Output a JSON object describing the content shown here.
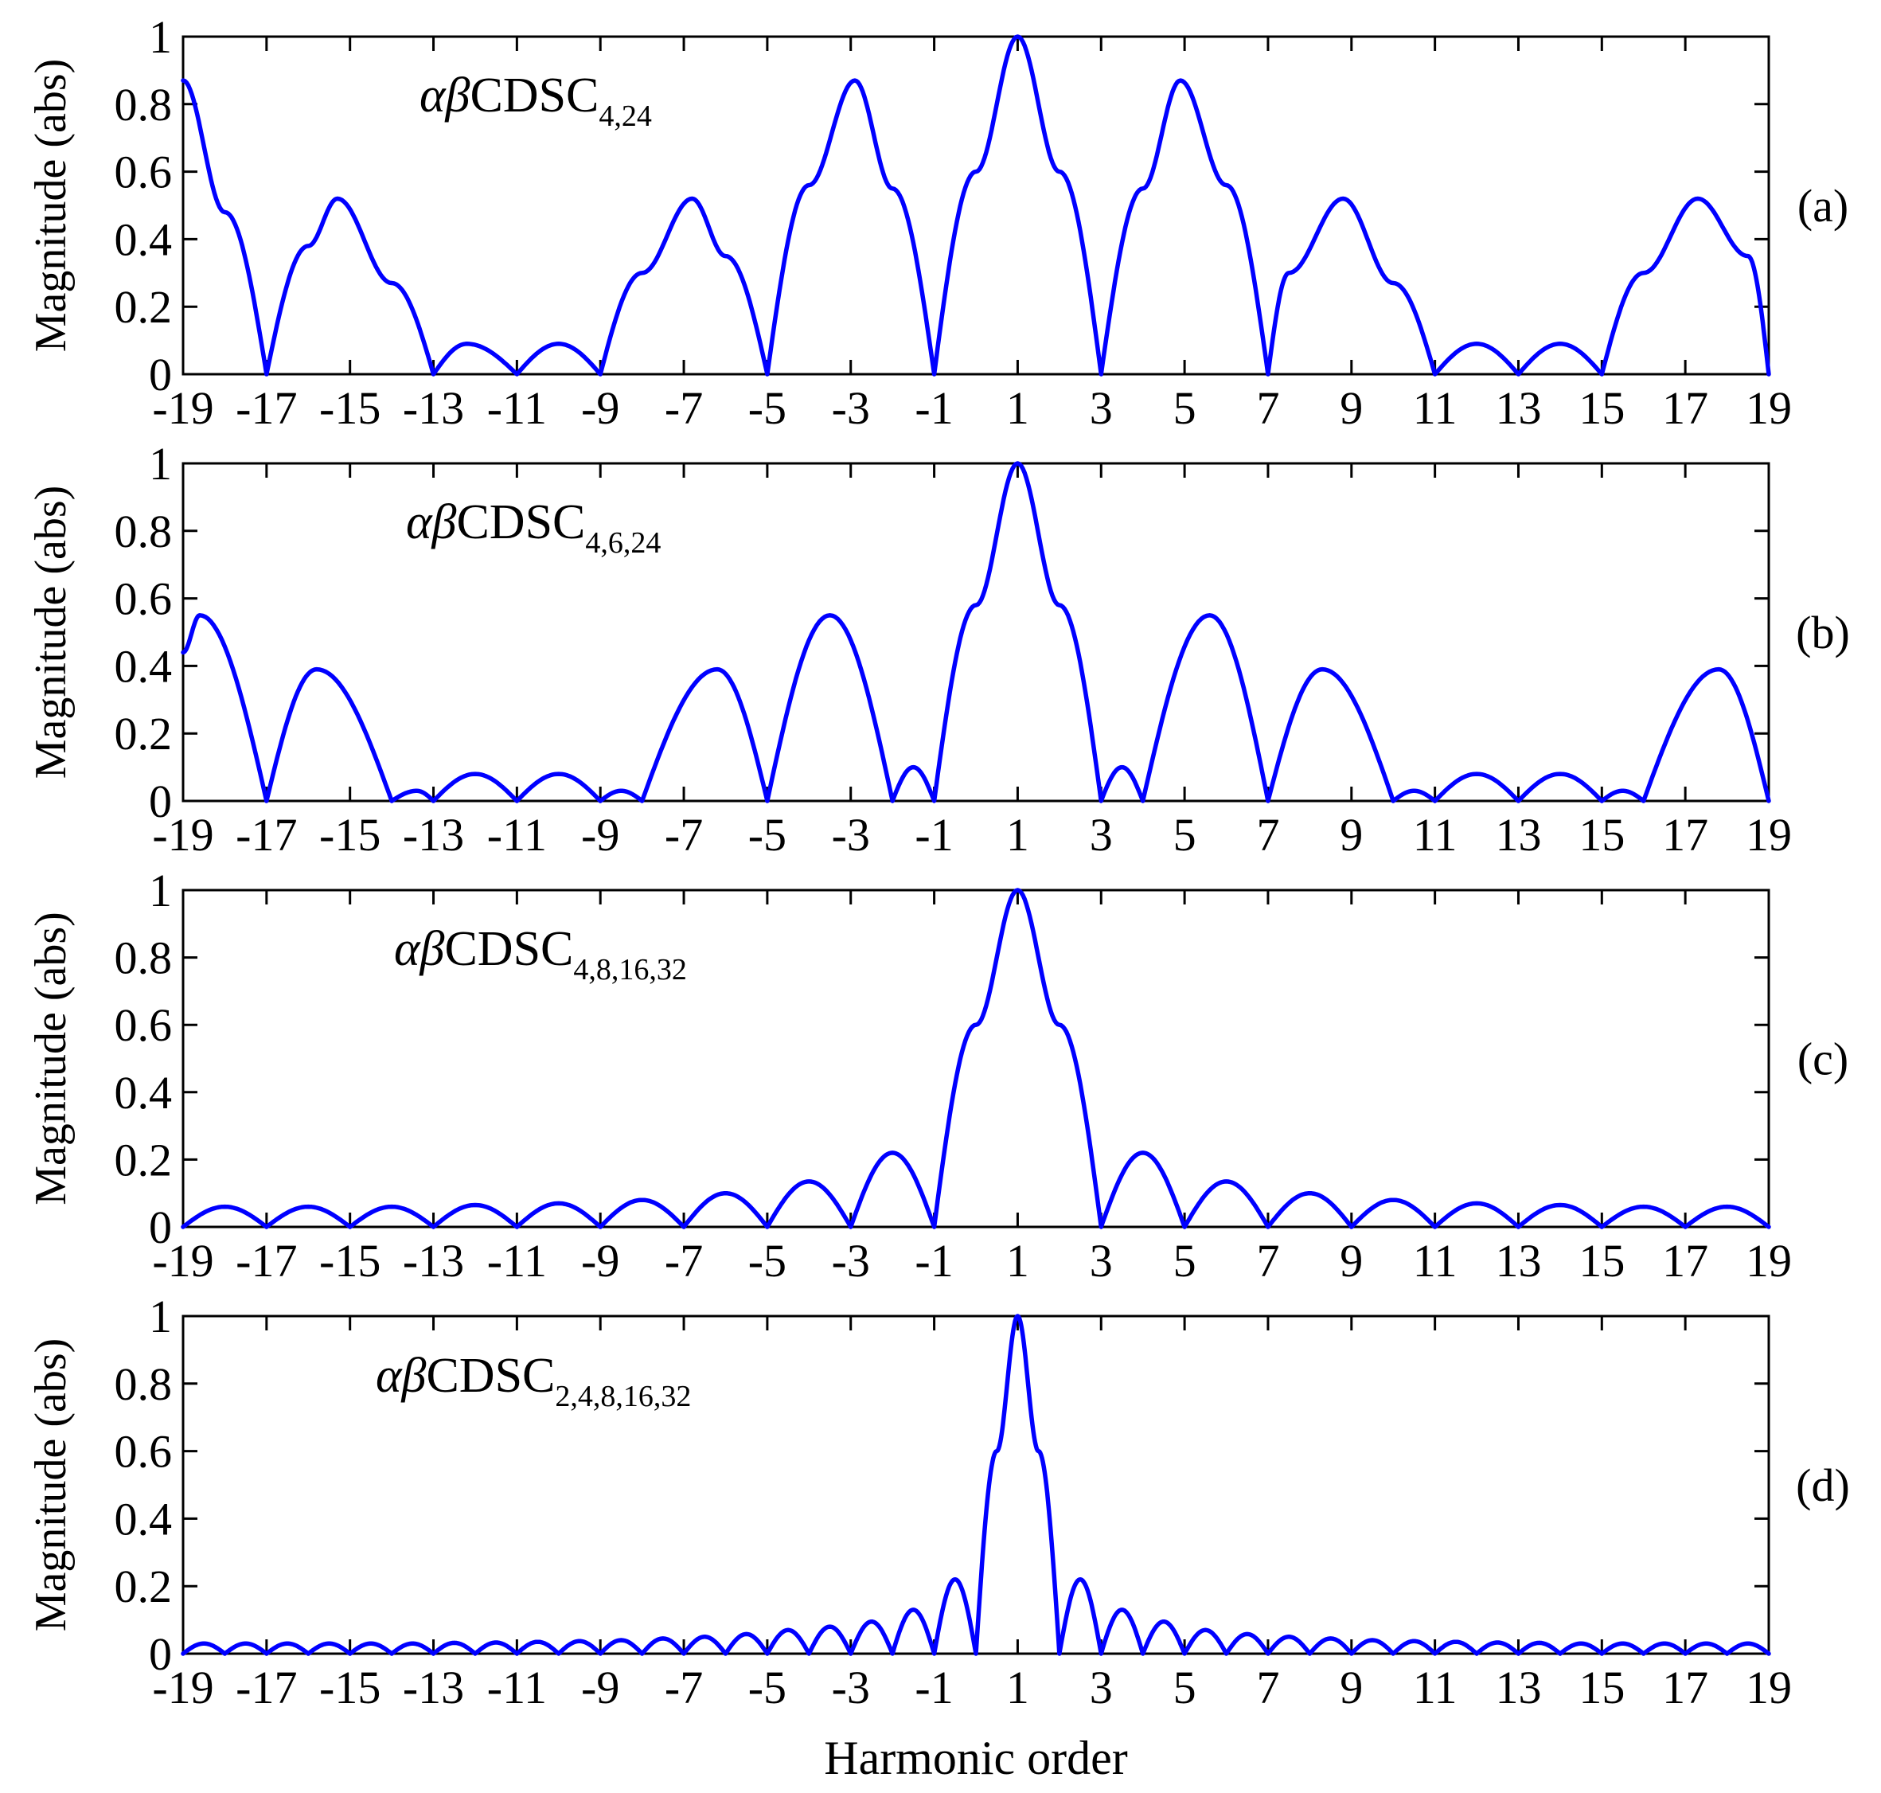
{
  "chart_data": [
    {
      "type": "line",
      "panel_label": "(a)",
      "annotation": {
        "greek": "αβ",
        "text": "CDSC",
        "subscript": "4,24"
      },
      "ylabel": "Magnitude (abs)",
      "xlabel": "",
      "xlim": [
        -19,
        19
      ],
      "ylim": [
        0,
        1
      ],
      "xticks": [
        "-19",
        "-17",
        "-15",
        "-13",
        "-11",
        "-9",
        "-7",
        "-5",
        "-3",
        "-1",
        "1",
        "3",
        "5",
        "7",
        "9",
        "11",
        "13",
        "15",
        "17",
        "19"
      ],
      "yticks": [
        "0",
        "0.2",
        "0.4",
        "0.6",
        "0.8",
        "1"
      ],
      "grid": false,
      "series": [
        {
          "color": "#0000ff",
          "x": [
            -19,
            -18,
            -17,
            -16,
            -15.3,
            -14,
            -13,
            -12.2,
            -11,
            -10,
            -9,
            -8,
            -6.8,
            -6,
            -5,
            -4,
            -2.9,
            -2,
            -1,
            0,
            1,
            2,
            3,
            4,
            4.9,
            6,
            7,
            7.5,
            8.8,
            10,
            11,
            12,
            13,
            14,
            15,
            16,
            17.3,
            18.5,
            19
          ],
          "y": [
            0.87,
            0.48,
            0,
            0.38,
            0.52,
            0.27,
            0,
            0.09,
            0,
            0.09,
            0,
            0.3,
            0.52,
            0.35,
            0,
            0.56,
            0.87,
            0.55,
            0,
            0.6,
            1,
            0.6,
            0,
            0.55,
            0.87,
            0.56,
            0,
            0.3,
            0.52,
            0.27,
            0,
            0.09,
            0,
            0.09,
            0,
            0.3,
            0.52,
            0.35,
            0
          ]
        }
      ]
    },
    {
      "type": "line",
      "panel_label": "(b)",
      "annotation": {
        "greek": "αβ",
        "text": "CDSC",
        "subscript": "4,6,24"
      },
      "ylabel": "Magnitude (abs)",
      "xlabel": "",
      "xlim": [
        -19,
        19
      ],
      "ylim": [
        0,
        1
      ],
      "xticks": [
        "-19",
        "-17",
        "-15",
        "-13",
        "-11",
        "-9",
        "-7",
        "-5",
        "-3",
        "-1",
        "1",
        "3",
        "5",
        "7",
        "9",
        "11",
        "13",
        "15",
        "17",
        "19"
      ],
      "yticks": [
        "0",
        "0.2",
        "0.4",
        "0.6",
        "0.8",
        "1"
      ],
      "grid": false,
      "series": [
        {
          "color": "#0000ff",
          "x": [
            -19,
            -18.6,
            -17,
            -15.8,
            -14,
            -13.4,
            -13,
            -12,
            -11,
            -10,
            -9,
            -8.5,
            -8,
            -6.2,
            -5,
            -3.5,
            -2,
            -1.5,
            -1,
            0,
            1,
            2,
            3,
            3.5,
            4,
            5.6,
            7,
            8.3,
            10,
            10.5,
            11,
            12,
            13,
            14,
            15,
            15.5,
            16,
            17.8,
            19
          ],
          "y": [
            0.44,
            0.55,
            0,
            0.39,
            0,
            0.03,
            0,
            0.08,
            0,
            0.08,
            0,
            0.03,
            0,
            0.39,
            0,
            0.55,
            0,
            0.1,
            0,
            0.58,
            1,
            0.58,
            0,
            0.1,
            0,
            0.55,
            0,
            0.39,
            0,
            0.03,
            0,
            0.08,
            0,
            0.08,
            0,
            0.03,
            0,
            0.39,
            0
          ]
        }
      ]
    },
    {
      "type": "line",
      "panel_label": "(c)",
      "annotation": {
        "greek": "αβ",
        "text": "CDSC",
        "subscript": "4,8,16,32"
      },
      "ylabel": "Magnitude (abs)",
      "xlabel": "",
      "xlim": [
        -19,
        19
      ],
      "ylim": [
        0,
        1
      ],
      "xticks": [
        "-19",
        "-17",
        "-15",
        "-13",
        "-11",
        "-9",
        "-7",
        "-5",
        "-3",
        "-1",
        "1",
        "3",
        "5",
        "7",
        "9",
        "11",
        "13",
        "15",
        "17",
        "19"
      ],
      "yticks": [
        "0",
        "0.2",
        "0.4",
        "0.6",
        "0.8",
        "1"
      ],
      "grid": false,
      "series": [
        {
          "color": "#0000ff",
          "x": [
            -19,
            -18,
            -17,
            -16,
            -15,
            -14,
            -13,
            -12,
            -11,
            -10,
            -9,
            -8,
            -7,
            -6,
            -5,
            -4,
            -3,
            -2,
            -1,
            0,
            1,
            2,
            3,
            4,
            5,
            6,
            7,
            8,
            9,
            10,
            11,
            12,
            13,
            14,
            15,
            16,
            17,
            18,
            19
          ],
          "y": [
            0,
            0.06,
            0,
            0.06,
            0,
            0.06,
            0,
            0.065,
            0,
            0.07,
            0,
            0.08,
            0,
            0.1,
            0,
            0.135,
            0,
            0.22,
            0,
            0.6,
            1,
            0.6,
            0,
            0.22,
            0,
            0.135,
            0,
            0.1,
            0,
            0.08,
            0,
            0.07,
            0,
            0.065,
            0,
            0.06,
            0,
            0.06,
            0
          ]
        }
      ]
    },
    {
      "type": "line",
      "panel_label": "(d)",
      "annotation": {
        "greek": "αβ",
        "text": "CDSC",
        "subscript": "2,4,8,16,32"
      },
      "ylabel": "Magnitude (abs)",
      "xlabel": "Harmonic order",
      "xlim": [
        -19,
        19
      ],
      "ylim": [
        0,
        1
      ],
      "xticks": [
        "-19",
        "-17",
        "-15",
        "-13",
        "-11",
        "-9",
        "-7",
        "-5",
        "-3",
        "-1",
        "1",
        "3",
        "5",
        "7",
        "9",
        "11",
        "13",
        "15",
        "17",
        "19"
      ],
      "yticks": [
        "0",
        "0.2",
        "0.4",
        "0.6",
        "0.8",
        "1"
      ],
      "grid": false,
      "series": [
        {
          "color": "#0000ff",
          "x": [
            -19,
            -18.5,
            -18,
            -17.5,
            -17,
            -16.5,
            -16,
            -15.5,
            -15,
            -14.5,
            -14,
            -13.5,
            -13,
            -12.5,
            -12,
            -11.5,
            -11,
            -10.5,
            -10,
            -9.5,
            -9,
            -8.5,
            -8,
            -7.5,
            -7,
            -6.5,
            -6,
            -5.5,
            -5,
            -4.5,
            -4,
            -3.5,
            -3,
            -2.5,
            -2,
            -1.5,
            -1,
            -0.5,
            0,
            0.5,
            1,
            1.5,
            2,
            2.5,
            3,
            3.5,
            4,
            4.5,
            5,
            5.5,
            6,
            6.5,
            7,
            7.5,
            8,
            8.5,
            9,
            9.5,
            10,
            10.5,
            11,
            11.5,
            12,
            12.5,
            13,
            13.5,
            14,
            14.5,
            15,
            15.5,
            16,
            16.5,
            17,
            17.5,
            18,
            18.5,
            19
          ],
          "y": [
            0,
            0.03,
            0,
            0.03,
            0,
            0.03,
            0,
            0.03,
            0,
            0.03,
            0,
            0.03,
            0,
            0.032,
            0,
            0.033,
            0,
            0.035,
            0,
            0.037,
            0,
            0.04,
            0,
            0.045,
            0,
            0.05,
            0,
            0.058,
            0,
            0.07,
            0,
            0.08,
            0,
            0.095,
            0,
            0.13,
            0,
            0.22,
            0,
            0.6,
            1,
            0.6,
            0,
            0.22,
            0,
            0.13,
            0,
            0.095,
            0,
            0.07,
            0,
            0.058,
            0,
            0.05,
            0,
            0.045,
            0,
            0.04,
            0,
            0.037,
            0,
            0.035,
            0,
            0.033,
            0,
            0.032,
            0,
            0.03,
            0,
            0.03,
            0,
            0.03,
            0,
            0.03,
            0,
            0.03,
            0
          ]
        }
      ]
    }
  ]
}
